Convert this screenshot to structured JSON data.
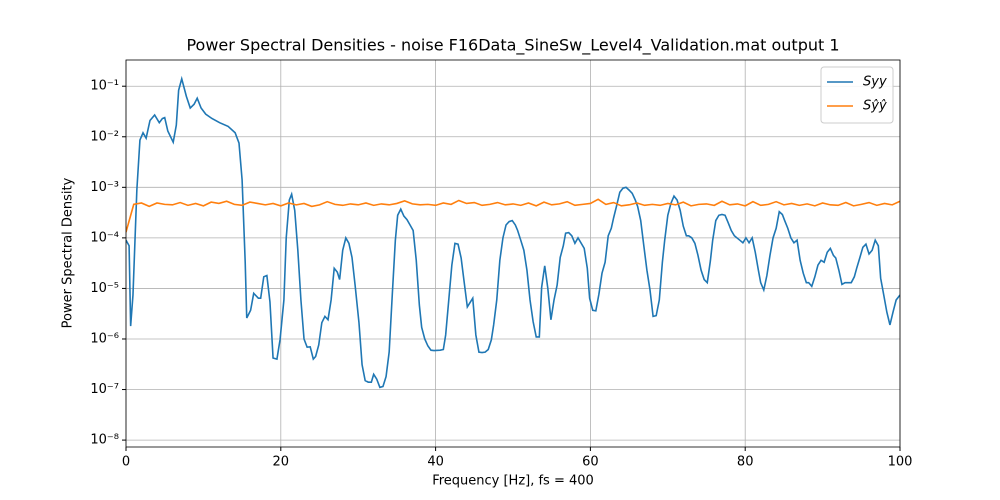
{
  "chart_data": {
    "type": "line",
    "title": "Power Spectral Densities - noise F16Data_SineSw_Level4_Validation.mat output 1",
    "xlabel": "Frequency [Hz], fs = 400",
    "ylabel": "Power Spectral Density",
    "log_y": true,
    "grid": true,
    "legend": "upper right",
    "xlim": [
      0,
      100
    ],
    "xticks": [
      0,
      20,
      40,
      60,
      80,
      100
    ],
    "ylim": [
      7.3e-09,
      0.33
    ],
    "yticks": [
      {
        "value": 1e-08,
        "label": "10⁻⁸"
      },
      {
        "value": 1e-07,
        "label": "10⁻⁷"
      },
      {
        "value": 1e-06,
        "label": "10⁻⁶"
      },
      {
        "value": 1e-05,
        "label": "10⁻⁵"
      },
      {
        "value": 0.0001,
        "label": "10⁻⁴"
      },
      {
        "value": 0.001,
        "label": "10⁻³"
      },
      {
        "value": 0.01,
        "label": "10⁻²"
      },
      {
        "value": 0.1,
        "label": "10⁻¹"
      }
    ],
    "series": [
      {
        "name": "Syy",
        "color": "#1f77b4",
        "x": [
          0,
          0.4,
          0.6,
          0.9,
          1.4,
          1.8,
          2.2,
          2.6,
          3.1,
          3.7,
          4.3,
          4.7,
          5.0,
          5.4,
          6.1,
          6.5,
          6.8,
          7.2,
          7.8,
          8.3,
          8.8,
          9.2,
          9.7,
          10.3,
          11.1,
          12.1,
          13.2,
          14.1,
          14.6,
          15.0,
          15.4,
          15.6,
          16.1,
          16.5,
          17.1,
          17.4,
          17.8,
          18.2,
          18.6,
          19.0,
          19.5,
          19.9,
          20.4,
          20.7,
          21.1,
          21.4,
          21.8,
          22.2,
          22.6,
          23.0,
          23.4,
          23.8,
          24.2,
          24.5,
          24.9,
          25.3,
          25.7,
          26.1,
          26.5,
          26.9,
          27.3,
          27.6,
          28.0,
          28.4,
          28.8,
          29.2,
          29.6,
          30.1,
          30.5,
          30.9,
          31.3,
          31.7,
          32.0,
          32.4,
          32.8,
          33.2,
          33.6,
          34.0,
          34.4,
          34.8,
          35.1,
          35.5,
          35.9,
          36.3,
          36.7,
          37.1,
          37.5,
          37.9,
          38.2,
          38.6,
          39.0,
          39.4,
          39.8,
          40.6,
          41.0,
          41.3,
          41.7,
          42.1,
          42.5,
          42.9,
          43.3,
          43.7,
          44.1,
          44.4,
          44.8,
          45.2,
          45.6,
          46.0,
          46.4,
          46.8,
          47.2,
          47.5,
          47.9,
          48.3,
          48.7,
          49.1,
          49.5,
          49.9,
          50.3,
          50.6,
          51.0,
          51.4,
          51.8,
          52.2,
          52.6,
          53.0,
          53.4,
          53.7,
          54.1,
          54.5,
          54.9,
          55.3,
          55.7,
          56.1,
          56.5,
          56.8,
          57.2,
          57.6,
          58.0,
          58.4,
          59.2,
          59.6,
          59.9,
          60.3,
          60.7,
          61.1,
          61.5,
          61.9,
          62.3,
          62.7,
          63.0,
          63.4,
          63.8,
          64.2,
          64.6,
          65.0,
          65.4,
          65.8,
          66.1,
          66.5,
          66.9,
          67.3,
          67.7,
          68.1,
          68.5,
          68.9,
          69.3,
          69.6,
          70.0,
          70.4,
          70.8,
          71.2,
          71.6,
          72.0,
          72.4,
          72.7,
          73.1,
          73.5,
          73.9,
          74.3,
          74.7,
          75.1,
          75.5,
          75.8,
          76.2,
          76.6,
          77.0,
          77.4,
          77.8,
          78.2,
          78.6,
          79.3,
          79.7,
          80.1,
          80.5,
          80.9,
          81.3,
          81.7,
          82.0,
          82.4,
          82.8,
          83.2,
          83.6,
          84.0,
          84.4,
          84.8,
          85.1,
          85.5,
          85.9,
          86.3,
          86.7,
          87.1,
          87.5,
          87.9,
          88.2,
          88.6,
          89.0,
          89.4,
          89.8,
          90.2,
          90.6,
          91.0,
          91.4,
          91.7,
          92.1,
          92.5,
          92.9,
          93.7,
          94.1,
          94.4,
          94.8,
          95.2,
          95.6,
          96.0,
          96.4,
          96.8,
          97.2,
          97.5,
          97.9,
          98.3,
          98.7,
          99.1,
          99.5,
          100
        ],
        "values": [
          9e-05,
          7e-05,
          1.8e-06,
          7.4e-06,
          0.00088,
          0.0086,
          0.012,
          0.0094,
          0.021,
          0.027,
          0.019,
          0.023,
          0.024,
          0.013,
          0.0078,
          0.017,
          0.083,
          0.14,
          0.063,
          0.037,
          0.044,
          0.058,
          0.037,
          0.028,
          0.023,
          0.019,
          0.016,
          0.012,
          0.0075,
          0.0014,
          3.3e-05,
          2.6e-06,
          3.7e-06,
          8e-06,
          6.4e-06,
          6.4e-06,
          1.7e-05,
          1.8e-05,
          5.4e-06,
          4.2e-07,
          4e-07,
          9.6e-07,
          5.9e-06,
          0.0001,
          0.00056,
          0.00073,
          0.00035,
          5.7e-05,
          5.9e-06,
          1e-06,
          6.9e-07,
          7e-07,
          4e-07,
          4.5e-07,
          7.6e-07,
          2.1e-06,
          2.8e-06,
          2.4e-06,
          5.9e-06,
          2.5e-05,
          2.1e-05,
          1.5e-05,
          5.7e-05,
          0.0001,
          7.8e-05,
          4.1e-05,
          1.16e-05,
          2.1e-06,
          3.1e-07,
          1.5e-07,
          1.4e-07,
          1.4e-07,
          2e-07,
          1.6e-07,
          1.1e-07,
          1.15e-07,
          1.8e-07,
          5.5e-07,
          7.4e-06,
          9e-05,
          0.00028,
          0.00037,
          0.00027,
          0.00023,
          0.00018,
          0.00014,
          3.6e-05,
          4.7e-06,
          1.7e-06,
          1e-06,
          7.3e-07,
          6e-07,
          5.9e-07,
          6e-07,
          6.2e-07,
          1.2e-06,
          5.9e-06,
          2.9e-05,
          7.8e-05,
          7.5e-05,
          4e-05,
          1.3e-05,
          4.3e-06,
          5.1e-06,
          6.4e-06,
          1.2e-06,
          5.5e-07,
          5.4e-07,
          5.5e-07,
          6.2e-07,
          9.6e-07,
          1.9e-06,
          5.9e-06,
          3.6e-05,
          0.0001,
          0.00018,
          0.00021,
          0.00022,
          0.00018,
          0.00014,
          9e-05,
          5.7e-05,
          2.3e-05,
          5.9e-06,
          2.2e-06,
          1.1e-06,
          1.1e-06,
          1.05e-05,
          2.8e-05,
          1e-05,
          2.4e-06,
          5.9e-06,
          1.16e-05,
          4.1e-05,
          7e-05,
          0.000124,
          0.000127,
          0.00011,
          7.8e-05,
          0.0001,
          6.2e-05,
          2.5e-05,
          6.4e-06,
          3.7e-06,
          3.6e-06,
          7.7e-06,
          2e-05,
          3.3e-05,
          0.00011,
          0.000155,
          0.00025,
          0.00044,
          0.0008,
          0.00096,
          0.001,
          0.00088,
          0.00076,
          0.00056,
          0.00042,
          0.00022,
          7e-05,
          2.3e-05,
          9.3e-06,
          2.8e-06,
          2.9e-06,
          5.9e-06,
          3.3e-05,
          9e-05,
          0.00028,
          0.00048,
          0.00067,
          0.00056,
          0.00035,
          0.00017,
          0.00011,
          0.00011,
          0.0001,
          7.8e-05,
          4.5e-05,
          2.3e-05,
          1.5e-05,
          1.3e-05,
          3.5e-05,
          9e-05,
          0.00022,
          0.00028,
          0.00029,
          0.00028,
          0.0002,
          0.00014,
          0.00011,
          9e-05,
          8e-05,
          0.0001,
          8e-05,
          0.0001,
          5.2e-05,
          2.3e-05,
          1.3e-05,
          9.3e-06,
          1.8e-05,
          4.5e-05,
          0.0001,
          0.000155,
          0.00033,
          0.00029,
          0.00022,
          0.000155,
          0.0001,
          8e-05,
          9e-05,
          3.6e-05,
          2e-05,
          1.3e-05,
          1.3e-05,
          1.1e-05,
          1.7e-05,
          2.9e-05,
          3.6e-05,
          3.3e-05,
          5.2e-05,
          6.2e-05,
          4.5e-05,
          4e-05,
          2.3e-05,
          1.2e-05,
          1.3e-05,
          1.3e-05,
          1.7e-05,
          2.5e-05,
          4e-05,
          6.5e-05,
          7.5e-05,
          4.8e-05,
          5.7e-05,
          9e-05,
          7e-05,
          1.6e-05,
          7.4e-06,
          3.4e-06,
          1.9e-06,
          3.4e-06,
          5.9e-06,
          7.4e-06
        ]
      },
      {
        "name": "Sŷŷ",
        "color": "#ff7f0e",
        "x": [
          0,
          1,
          2,
          3,
          4,
          5,
          6,
          7,
          8,
          9,
          10,
          11,
          12,
          13,
          14,
          15,
          16,
          17,
          18,
          19,
          20,
          21,
          22,
          23,
          24,
          25,
          26,
          27,
          28,
          29,
          30,
          31,
          32,
          33,
          34,
          35,
          36,
          37,
          38,
          39,
          40,
          41,
          42,
          43,
          44,
          45,
          46,
          47,
          48,
          49,
          50,
          51,
          52,
          53,
          54,
          55,
          56,
          57,
          58,
          59,
          60,
          61,
          62,
          63,
          64,
          65,
          66,
          67,
          68,
          69,
          70,
          71,
          72,
          73,
          74,
          75,
          76,
          77,
          78,
          79,
          80,
          81,
          82,
          83,
          84,
          85,
          86,
          87,
          88,
          89,
          90,
          91,
          92,
          93,
          94,
          95,
          96,
          97,
          98,
          99,
          100
        ],
        "values": [
          0.00013,
          0.00046,
          0.00049,
          0.00042,
          0.00049,
          0.00046,
          0.00045,
          0.0005,
          0.00044,
          0.00048,
          0.00043,
          0.00051,
          0.00048,
          0.00053,
          0.00046,
          0.00044,
          0.00051,
          0.00048,
          0.00045,
          0.00048,
          0.00043,
          0.00049,
          0.00045,
          0.00048,
          0.00042,
          0.00045,
          0.00052,
          0.00046,
          0.00044,
          0.00047,
          0.00045,
          0.00049,
          0.00044,
          0.00047,
          0.00045,
          0.00048,
          0.00054,
          0.00047,
          0.00045,
          0.00046,
          0.00044,
          0.00049,
          0.00046,
          0.00055,
          0.00048,
          0.0005,
          0.00044,
          0.00046,
          0.0005,
          0.00045,
          0.00047,
          0.00044,
          0.00049,
          0.00043,
          0.00051,
          0.00045,
          0.00047,
          0.00052,
          0.00044,
          0.00046,
          0.00048,
          0.00058,
          0.00046,
          0.0005,
          0.00043,
          0.00045,
          0.00049,
          0.00044,
          0.00046,
          0.00044,
          0.00048,
          0.00045,
          0.00051,
          0.00043,
          0.00046,
          0.00047,
          0.00044,
          0.00053,
          0.00045,
          0.00047,
          0.00043,
          0.00052,
          0.00044,
          0.00046,
          0.00052,
          0.00045,
          0.00048,
          0.00044,
          0.00047,
          0.00043,
          0.00049,
          0.00045,
          0.00044,
          0.0005,
          0.00043,
          0.00046,
          0.0005,
          0.00044,
          0.00048,
          0.00045,
          0.00053
        ]
      }
    ]
  }
}
